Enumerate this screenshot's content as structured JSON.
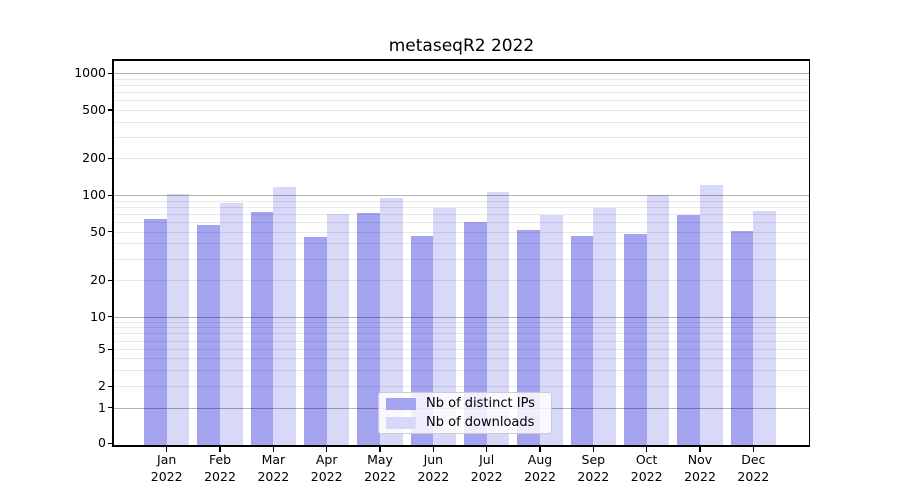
{
  "title": "metaseqR2 2022",
  "chart_data": {
    "type": "bar",
    "title": "metaseqR2 2022",
    "categories": [
      "Jan 2022",
      "Feb 2022",
      "Mar 2022",
      "Apr 2022",
      "May 2022",
      "Jun 2022",
      "Jul 2022",
      "Aug 2022",
      "Sep 2022",
      "Oct 2022",
      "Nov 2022",
      "Dec 2022"
    ],
    "series": [
      {
        "name": "Nb of distinct IPs",
        "color": "#a3a3f0",
        "values": [
          63,
          57,
          72,
          45,
          71,
          46,
          60,
          52,
          46,
          48,
          68,
          51
        ]
      },
      {
        "name": "Nb of downloads",
        "color": "#d8d8f8",
        "values": [
          101,
          86,
          116,
          70,
          94,
          78,
          105,
          68,
          78,
          100,
          120,
          74
        ]
      }
    ],
    "yscale": "symlog",
    "yticks": [
      0,
      1,
      2,
      5,
      10,
      20,
      50,
      100,
      200,
      500,
      1000
    ],
    "ylim": [
      0,
      1300
    ],
    "grid": true,
    "legend_position": "lower center"
  }
}
